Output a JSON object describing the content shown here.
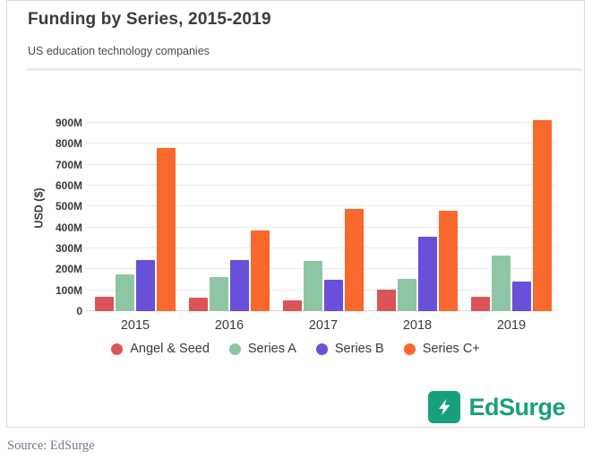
{
  "header": {
    "title": "Funding by Series, 2015-2019",
    "subtitle": "US education technology companies"
  },
  "chart_data": {
    "type": "bar",
    "categories": [
      "2015",
      "2016",
      "2017",
      "2018",
      "2019"
    ],
    "series": [
      {
        "name": "Angel & Seed",
        "color": "#db5458",
        "values": [
          70,
          65,
          50,
          105,
          70
        ]
      },
      {
        "name": "Series A",
        "color": "#8ec6a4",
        "values": [
          175,
          165,
          240,
          155,
          265
        ]
      },
      {
        "name": "Series B",
        "color": "#6a4fd8",
        "values": [
          245,
          245,
          150,
          355,
          140
        ]
      },
      {
        "name": "Series C+",
        "color": "#f9682c",
        "values": [
          780,
          385,
          490,
          480,
          915
        ]
      }
    ],
    "title": "Funding by Series, 2015-2019",
    "xlabel": "",
    "ylabel": "USD ($)",
    "ylim": [
      0,
      900
    ],
    "ytick_step": 100,
    "ytick_labels": [
      "0",
      "100M",
      "200M",
      "300M",
      "400M",
      "500M",
      "600M",
      "700M",
      "800M",
      "900M"
    ],
    "grid": true,
    "legend_position": "bottom"
  },
  "footer": {
    "logo_text": "EdSurge",
    "logo_color": "#18a07c"
  },
  "source": {
    "text": "Source: EdSurge"
  }
}
